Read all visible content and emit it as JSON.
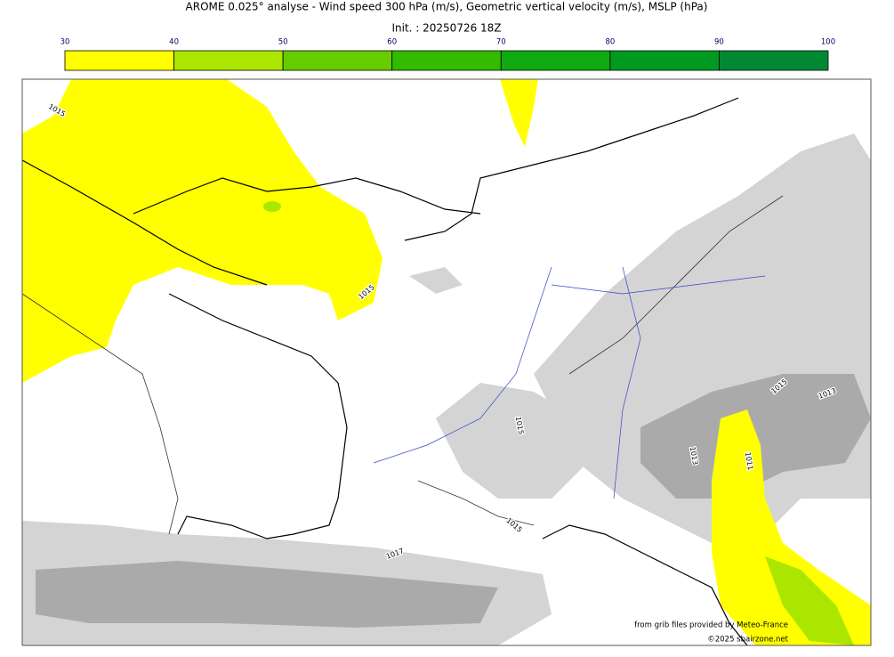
{
  "title": "AROME 0.025° analyse - Wind speed 300 hPa (m/s), Geometric vertical velocity (m/s), MSLP (hPa)",
  "subtitle": "Init. : 20250726 18Z",
  "colorbar": {
    "ticks": [
      30,
      40,
      50,
      60,
      70,
      80,
      90,
      100
    ],
    "colors": [
      "#ffff00",
      "#aae600",
      "#66cc00",
      "#33bb00",
      "#11aa11",
      "#009922",
      "#008833",
      "#007744"
    ]
  },
  "contour_labels": [
    "1015",
    "1015",
    "1015",
    "1015",
    "1017",
    "1015",
    "1013",
    "1011",
    "1013"
  ],
  "credits": [
    "from grib files provided by Meteo-France",
    "©2025 sbairzone.net"
  ]
}
